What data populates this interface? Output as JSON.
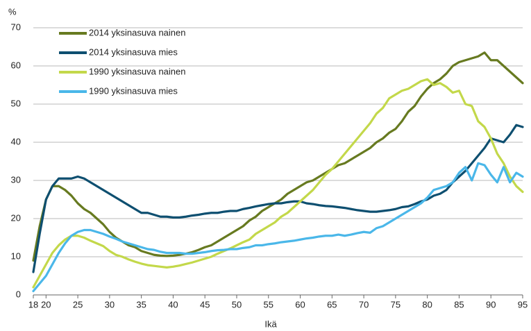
{
  "chart_data": {
    "type": "line",
    "ylabel": "%",
    "xlabel": "Ikä",
    "x": [
      18,
      19,
      20,
      21,
      22,
      23,
      24,
      25,
      26,
      27,
      28,
      29,
      30,
      31,
      32,
      33,
      34,
      35,
      36,
      37,
      38,
      39,
      40,
      41,
      42,
      43,
      44,
      45,
      46,
      47,
      48,
      49,
      50,
      51,
      52,
      53,
      54,
      55,
      56,
      57,
      58,
      59,
      60,
      61,
      62,
      63,
      64,
      65,
      66,
      67,
      68,
      69,
      70,
      71,
      72,
      73,
      74,
      75,
      76,
      77,
      78,
      79,
      80,
      81,
      82,
      83,
      84,
      85,
      86,
      87,
      88,
      89,
      90,
      91,
      92,
      93,
      94,
      95
    ],
    "series": [
      {
        "name": "2014 yksinasuva nainen",
        "color": "#677a20",
        "values": [
          9,
          18,
          25,
          28.5,
          28.5,
          27.5,
          26,
          24,
          22.5,
          21.5,
          20,
          18.5,
          16.5,
          15,
          14,
          13,
          12.5,
          11.5,
          11,
          10.5,
          10.3,
          10.2,
          10.3,
          10.5,
          10.8,
          11.2,
          11.8,
          12.5,
          13,
          14,
          15,
          16,
          17,
          18,
          19.5,
          20.5,
          22,
          23,
          24,
          25,
          26.5,
          27.5,
          28.5,
          29.5,
          30,
          31,
          32,
          33,
          34,
          34.5,
          35.5,
          36.5,
          37.5,
          38.5,
          40,
          41,
          42.5,
          43.5,
          45.5,
          48,
          49.5,
          52,
          54,
          55.5,
          56.5,
          58,
          60,
          61,
          61.5,
          62,
          62.5,
          63.5,
          61.5,
          61.5,
          60,
          58.5,
          57,
          55.5
        ]
      },
      {
        "name": "2014 yksinasuva mies",
        "color": "#0e4f70",
        "values": [
          6,
          16,
          25,
          28.5,
          30.5,
          30.5,
          30.5,
          31,
          30.5,
          29.5,
          28.5,
          27.5,
          26.5,
          25.5,
          24.5,
          23.5,
          22.5,
          21.5,
          21.5,
          21,
          20.5,
          20.5,
          20.3,
          20.3,
          20.5,
          20.8,
          21,
          21.3,
          21.5,
          21.5,
          21.8,
          22,
          22,
          22.5,
          22.8,
          23.2,
          23.5,
          23.8,
          24,
          24,
          24.3,
          24.5,
          24.5,
          24,
          23.8,
          23.5,
          23.3,
          23.2,
          23,
          22.8,
          22.5,
          22.2,
          22,
          21.8,
          21.8,
          22,
          22.2,
          22.5,
          23,
          23.2,
          23.8,
          24.5,
          25,
          26,
          26.5,
          27.5,
          29.5,
          31,
          32.5,
          34.5,
          36.5,
          38.5,
          41,
          40.5,
          40,
          42,
          44.5,
          44
        ]
      },
      {
        "name": "1990 yksinasuva nainen",
        "color": "#c3d84a",
        "values": [
          2,
          5,
          8,
          11,
          13,
          14.5,
          15.5,
          15.5,
          15,
          14.2,
          13.5,
          12.8,
          11.5,
          10.5,
          10,
          9.3,
          8.7,
          8.2,
          7.8,
          7.6,
          7.4,
          7.2,
          7.4,
          7.7,
          8.1,
          8.5,
          9,
          9.5,
          10,
          10.8,
          11.5,
          12.2,
          13,
          13.8,
          14.5,
          16,
          17,
          18,
          19,
          20.5,
          21.5,
          23,
          24.5,
          26,
          27.5,
          29.5,
          31.5,
          33,
          35,
          37,
          39,
          41,
          43,
          45,
          47.5,
          49,
          51.5,
          52.5,
          53.5,
          54,
          55,
          56,
          56.5,
          55,
          55.5,
          54.5,
          53,
          53.5,
          50,
          49.5,
          45.5,
          44,
          41,
          37,
          34.5,
          31,
          28.5,
          27
        ]
      },
      {
        "name": "1990 yksinasuva mies",
        "color": "#4ab7e9",
        "values": [
          1,
          3,
          5,
          8,
          11,
          13.5,
          15.5,
          16.5,
          17,
          17,
          16.5,
          16,
          15.3,
          14.7,
          14,
          13.5,
          13,
          12.5,
          12,
          11.8,
          11.3,
          11,
          11,
          11,
          10.8,
          10.8,
          11,
          11.2,
          11.5,
          11.7,
          11.8,
          12,
          12,
          12.3,
          12.5,
          13,
          13,
          13.3,
          13.5,
          13.8,
          14,
          14.2,
          14.5,
          14.8,
          15,
          15.3,
          15.5,
          15.5,
          15.8,
          15.5,
          15.8,
          16.2,
          16.5,
          16.3,
          17.5,
          18,
          19,
          20,
          21,
          22,
          23,
          24,
          25.5,
          27.5,
          28,
          28.5,
          29.5,
          32,
          33.5,
          30,
          34.5,
          34,
          31.5,
          29.5,
          33.5,
          29.5,
          32,
          31
        ]
      }
    ],
    "xlim": [
      18,
      95
    ],
    "xticks": [
      18,
      20,
      25,
      30,
      35,
      40,
      45,
      50,
      55,
      60,
      65,
      70,
      75,
      80,
      85,
      90,
      95
    ],
    "ylim": [
      0,
      70
    ],
    "yticks": [
      0,
      10,
      20,
      30,
      40,
      50,
      60,
      70
    ],
    "grid": true,
    "legend": "top-left"
  }
}
